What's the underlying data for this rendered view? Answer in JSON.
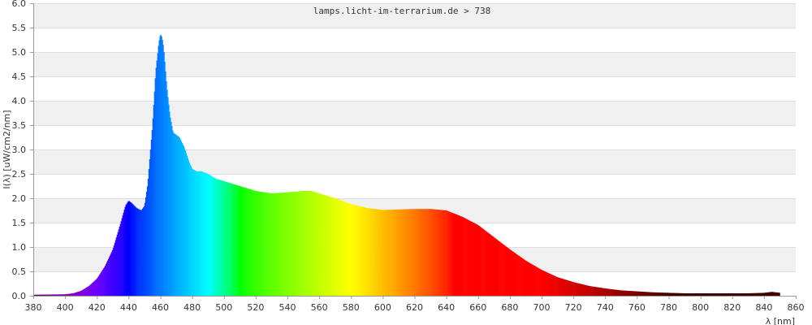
{
  "chart_data": {
    "type": "area",
    "title": "lamps.licht-im-terrarium.de > 738",
    "xlabel": "λ [nm]",
    "ylabel": "I(λ)  [uW/cm2/nm]",
    "xlim": [
      380,
      860
    ],
    "ylim": [
      0,
      6
    ],
    "x_ticks": [
      380,
      400,
      420,
      440,
      460,
      480,
      500,
      520,
      540,
      560,
      580,
      600,
      620,
      640,
      660,
      680,
      700,
      720,
      740,
      760,
      780,
      800,
      820,
      840,
      860
    ],
    "y_ticks": [
      0.0,
      0.5,
      1.0,
      1.5,
      2.0,
      2.5,
      3.0,
      3.5,
      4.0,
      4.5,
      5.0,
      5.5,
      6.0
    ],
    "grid": "horizontal alternating bands",
    "fill": "visible-spectrum colors by wavelength",
    "series": [
      {
        "x": [
          380,
          400,
          405,
          410,
          415,
          420,
          425,
          430,
          435,
          438,
          440,
          442,
          445,
          448,
          450,
          452,
          455,
          457,
          459,
          460,
          461,
          462,
          464,
          466,
          468,
          470,
          472,
          475,
          478,
          480,
          483,
          486,
          490,
          495,
          500,
          510,
          520,
          530,
          540,
          550,
          555,
          560,
          570,
          580,
          590,
          600,
          610,
          620,
          630,
          640,
          650,
          660,
          670,
          680,
          690,
          700,
          710,
          720,
          730,
          740,
          750,
          760,
          770,
          780,
          790,
          800,
          810,
          820,
          830,
          840,
          845,
          850
        ],
        "y": [
          0.02,
          0.03,
          0.05,
          0.1,
          0.2,
          0.35,
          0.6,
          0.95,
          1.5,
          1.85,
          1.95,
          1.9,
          1.8,
          1.75,
          1.85,
          2.3,
          3.5,
          4.6,
          5.2,
          5.37,
          5.3,
          5.1,
          4.3,
          3.7,
          3.35,
          3.3,
          3.25,
          3.05,
          2.75,
          2.6,
          2.55,
          2.55,
          2.5,
          2.4,
          2.35,
          2.25,
          2.15,
          2.1,
          2.12,
          2.15,
          2.15,
          2.1,
          2.0,
          1.88,
          1.8,
          1.76,
          1.77,
          1.78,
          1.78,
          1.75,
          1.62,
          1.45,
          1.2,
          0.95,
          0.72,
          0.53,
          0.38,
          0.28,
          0.2,
          0.15,
          0.11,
          0.09,
          0.07,
          0.06,
          0.05,
          0.05,
          0.05,
          0.05,
          0.05,
          0.06,
          0.08,
          0.06
        ]
      }
    ]
  }
}
